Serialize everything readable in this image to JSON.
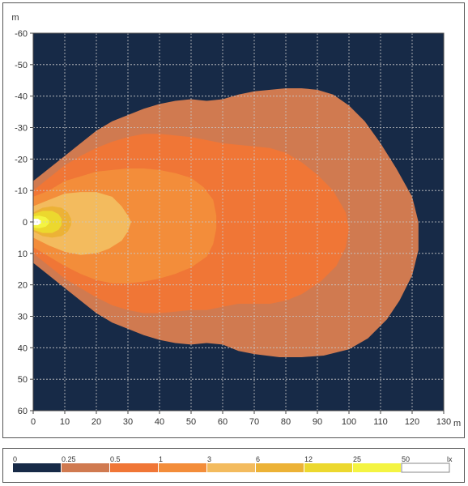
{
  "chart_data": {
    "type": "heatmap",
    "title": "",
    "xlabel": "m",
    "ylabel": "m",
    "xlim": [
      0,
      130
    ],
    "ylim": [
      -60,
      60
    ],
    "y_inverted": true,
    "grid": true,
    "x_ticks": [
      0,
      10,
      20,
      30,
      40,
      50,
      60,
      70,
      80,
      90,
      100,
      110,
      120,
      130
    ],
    "y_ticks": [
      -60,
      -50,
      -40,
      -30,
      -20,
      -10,
      0,
      10,
      20,
      30,
      40,
      50,
      60
    ],
    "background_color": "#172a47",
    "legend_unit": "lx",
    "legend": [
      {
        "label": "0",
        "color": "#172a47"
      },
      {
        "label": "0.25",
        "color": "#d07a50"
      },
      {
        "label": "0.5",
        "color": "#f07636"
      },
      {
        "label": "1",
        "color": "#f38d3a"
      },
      {
        "label": "3",
        "color": "#f3bb5e"
      },
      {
        "label": "6",
        "color": "#ecb236"
      },
      {
        "label": "12",
        "color": "#ecd82e"
      },
      {
        "label": "25",
        "color": "#f4f442"
      },
      {
        "label": "50",
        "color": "#ffffff"
      }
    ],
    "contours": [
      {
        "level": "0.25",
        "color": "#d07a50",
        "points": [
          [
            0,
            -13
          ],
          [
            5,
            -17
          ],
          [
            10,
            -21
          ],
          [
            15,
            -25
          ],
          [
            20,
            -29
          ],
          [
            25,
            -32
          ],
          [
            30,
            -34
          ],
          [
            35,
            -36
          ],
          [
            40,
            -37.5
          ],
          [
            45,
            -38.5
          ],
          [
            50,
            -39
          ],
          [
            55,
            -38.5
          ],
          [
            60,
            -39
          ],
          [
            65,
            -40.5
          ],
          [
            70,
            -41.5
          ],
          [
            75,
            -42
          ],
          [
            80,
            -42.5
          ],
          [
            85,
            -42.5
          ],
          [
            90,
            -42
          ],
          [
            95,
            -40.5
          ],
          [
            100,
            -37
          ],
          [
            105,
            -32
          ],
          [
            110,
            -25
          ],
          [
            115,
            -17
          ],
          [
            120,
            -8
          ],
          [
            122,
            0
          ],
          [
            122,
            9
          ],
          [
            120,
            17
          ],
          [
            116,
            25
          ],
          [
            112,
            31
          ],
          [
            106,
            37
          ],
          [
            100,
            40.5
          ],
          [
            92,
            42.5
          ],
          [
            85,
            43
          ],
          [
            78,
            43
          ],
          [
            70,
            42
          ],
          [
            65,
            41
          ],
          [
            60,
            39
          ],
          [
            55,
            38.5
          ],
          [
            50,
            39
          ],
          [
            45,
            38.5
          ],
          [
            40,
            37.5
          ],
          [
            35,
            36
          ],
          [
            30,
            34
          ],
          [
            25,
            32
          ],
          [
            20,
            29
          ],
          [
            15,
            25
          ],
          [
            10,
            21
          ],
          [
            5,
            17
          ],
          [
            0,
            13
          ]
        ]
      },
      {
        "level": "0.5",
        "color": "#f07636",
        "points": [
          [
            0,
            -10
          ],
          [
            5,
            -14
          ],
          [
            10,
            -18
          ],
          [
            15,
            -21
          ],
          [
            20,
            -23.5
          ],
          [
            25,
            -25.5
          ],
          [
            30,
            -27
          ],
          [
            35,
            -28
          ],
          [
            40,
            -28
          ],
          [
            45,
            -27.5
          ],
          [
            50,
            -27
          ],
          [
            55,
            -26
          ],
          [
            60,
            -25
          ],
          [
            65,
            -24.5
          ],
          [
            70,
            -24
          ],
          [
            75,
            -23.5
          ],
          [
            80,
            -22
          ],
          [
            85,
            -19
          ],
          [
            90,
            -15
          ],
          [
            95,
            -10
          ],
          [
            99,
            -3
          ],
          [
            100,
            2
          ],
          [
            99,
            8
          ],
          [
            96,
            14
          ],
          [
            91,
            19
          ],
          [
            85,
            23
          ],
          [
            80,
            25
          ],
          [
            75,
            26
          ],
          [
            70,
            26
          ],
          [
            65,
            26
          ],
          [
            60,
            27
          ],
          [
            55,
            28
          ],
          [
            50,
            28
          ],
          [
            45,
            28.5
          ],
          [
            40,
            29
          ],
          [
            35,
            29
          ],
          [
            30,
            28
          ],
          [
            25,
            26.5
          ],
          [
            20,
            24
          ],
          [
            15,
            21
          ],
          [
            10,
            18
          ],
          [
            5,
            14
          ],
          [
            0,
            10
          ]
        ]
      },
      {
        "level": "1",
        "color": "#f38d3a",
        "points": [
          [
            0,
            -8
          ],
          [
            5,
            -10
          ],
          [
            10,
            -13
          ],
          [
            15,
            -14.5
          ],
          [
            20,
            -16
          ],
          [
            25,
            -16.5
          ],
          [
            30,
            -17
          ],
          [
            35,
            -17
          ],
          [
            40,
            -16.5
          ],
          [
            45,
            -15.5
          ],
          [
            50,
            -14
          ],
          [
            54,
            -11
          ],
          [
            57,
            -7
          ],
          [
            58,
            -2
          ],
          [
            58,
            2
          ],
          [
            57,
            7
          ],
          [
            55,
            11
          ],
          [
            50,
            14.5
          ],
          [
            45,
            16.5
          ],
          [
            40,
            18
          ],
          [
            35,
            19
          ],
          [
            30,
            19.5
          ],
          [
            25,
            19.5
          ],
          [
            20,
            18.5
          ],
          [
            15,
            16.5
          ],
          [
            10,
            14
          ],
          [
            5,
            11
          ],
          [
            0,
            8
          ]
        ]
      },
      {
        "level": "3",
        "color": "#f3bb5e",
        "points": [
          [
            0,
            -5
          ],
          [
            5,
            -7
          ],
          [
            10,
            -9
          ],
          [
            15,
            -9.5
          ],
          [
            20,
            -9.5
          ],
          [
            25,
            -8
          ],
          [
            28,
            -5
          ],
          [
            30,
            -2
          ],
          [
            31,
            0
          ],
          [
            30,
            3
          ],
          [
            28,
            6
          ],
          [
            24,
            8.5
          ],
          [
            20,
            10
          ],
          [
            15,
            10.5
          ],
          [
            10,
            9.5
          ],
          [
            5,
            7.5
          ],
          [
            0,
            5
          ]
        ]
      },
      {
        "level": "6",
        "color": "#ecb236",
        "points": [
          [
            0,
            -3
          ],
          [
            3,
            -4.5
          ],
          [
            6,
            -5
          ],
          [
            9,
            -4.5
          ],
          [
            11,
            -3
          ],
          [
            12,
            -1
          ],
          [
            12,
            1
          ],
          [
            11,
            3
          ],
          [
            9,
            4.5
          ],
          [
            6,
            5
          ],
          [
            3,
            4.5
          ],
          [
            0,
            3
          ]
        ]
      },
      {
        "level": "12",
        "color": "#ecd82e",
        "points": [
          [
            0,
            -2.5
          ],
          [
            3,
            -3.5
          ],
          [
            6,
            -3.5
          ],
          [
            8,
            -2.5
          ],
          [
            9,
            -1
          ],
          [
            9,
            1
          ],
          [
            8,
            2.5
          ],
          [
            6,
            3.5
          ],
          [
            3,
            3.5
          ],
          [
            0,
            2.5
          ]
        ]
      },
      {
        "level": "25",
        "color": "#f4f442",
        "points": [
          [
            0,
            -1.8
          ],
          [
            2,
            -2
          ],
          [
            4,
            -1.5
          ],
          [
            5,
            -0.5
          ],
          [
            5,
            0.5
          ],
          [
            4,
            1.5
          ],
          [
            2,
            2
          ],
          [
            0,
            1.8
          ]
        ]
      },
      {
        "level": "50",
        "color": "#ffffff",
        "points": [
          [
            0,
            -1
          ],
          [
            1.5,
            -1
          ],
          [
            2.5,
            -0.3
          ],
          [
            2.5,
            0.3
          ],
          [
            1.5,
            1
          ],
          [
            0,
            1
          ]
        ]
      }
    ]
  }
}
